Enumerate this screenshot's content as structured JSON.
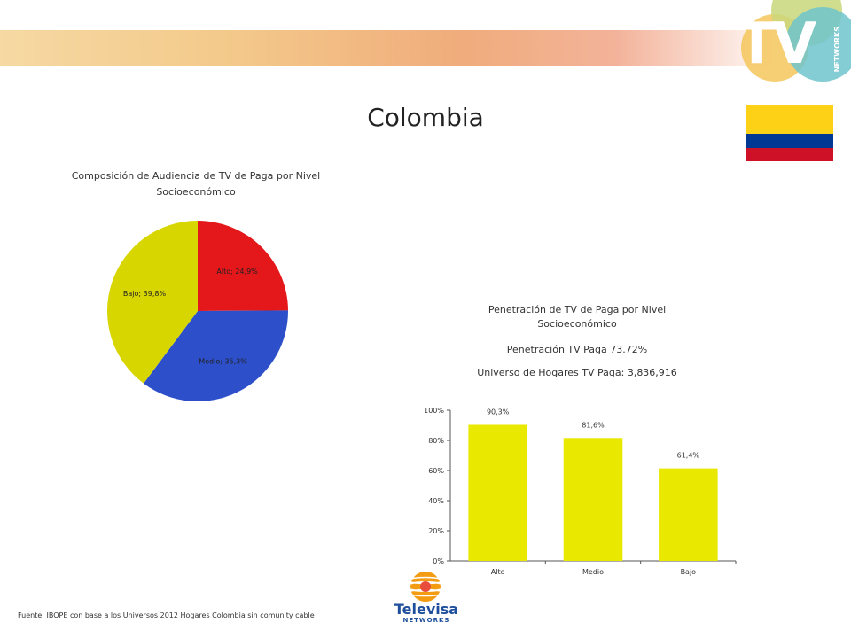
{
  "page": {
    "title": "Colombia",
    "footer": "Fuente: IBOPE con base a los Universos 2012 Hogares Colombia sin comunity cable"
  },
  "logos": {
    "tv_networks": {
      "main": "TV",
      "sub": "NETWORKS"
    },
    "televisa": {
      "main": "Televisa",
      "sub": "NETWORKS"
    }
  },
  "colors": {
    "alto": "#e4171b",
    "medio": "#2d4fc9",
    "bajo": "#d8d600",
    "bar": "#e8e800"
  },
  "chart_data": [
    {
      "type": "pie",
      "title": "Composición de Audiencia de TV de Paga por Nivel Socioeconómico",
      "slices": [
        {
          "label": "Alto",
          "value": 24.9,
          "display": "Alto; 24,9%"
        },
        {
          "label": "Medio",
          "value": 35.3,
          "display": "Medio; 35,3%"
        },
        {
          "label": "Bajo",
          "value": 39.8,
          "display": "Bajo; 39,8%"
        }
      ]
    },
    {
      "type": "bar",
      "title": "Penetración de TV de Paga por Nivel Socioeconómico",
      "subtitle_lines": [
        "Penetración TV Paga 73.72%",
        "Universo de Hogares TV Paga: 3,836,916"
      ],
      "categories": [
        "Alto",
        "Medio",
        "Bajo"
      ],
      "values": [
        90.3,
        81.6,
        61.4
      ],
      "value_labels": [
        "90,3%",
        "81,6%",
        "61,4%"
      ],
      "ylim": [
        0,
        100
      ],
      "yticks": [
        "0%",
        "20%",
        "40%",
        "60%",
        "80%",
        "100%"
      ]
    }
  ]
}
